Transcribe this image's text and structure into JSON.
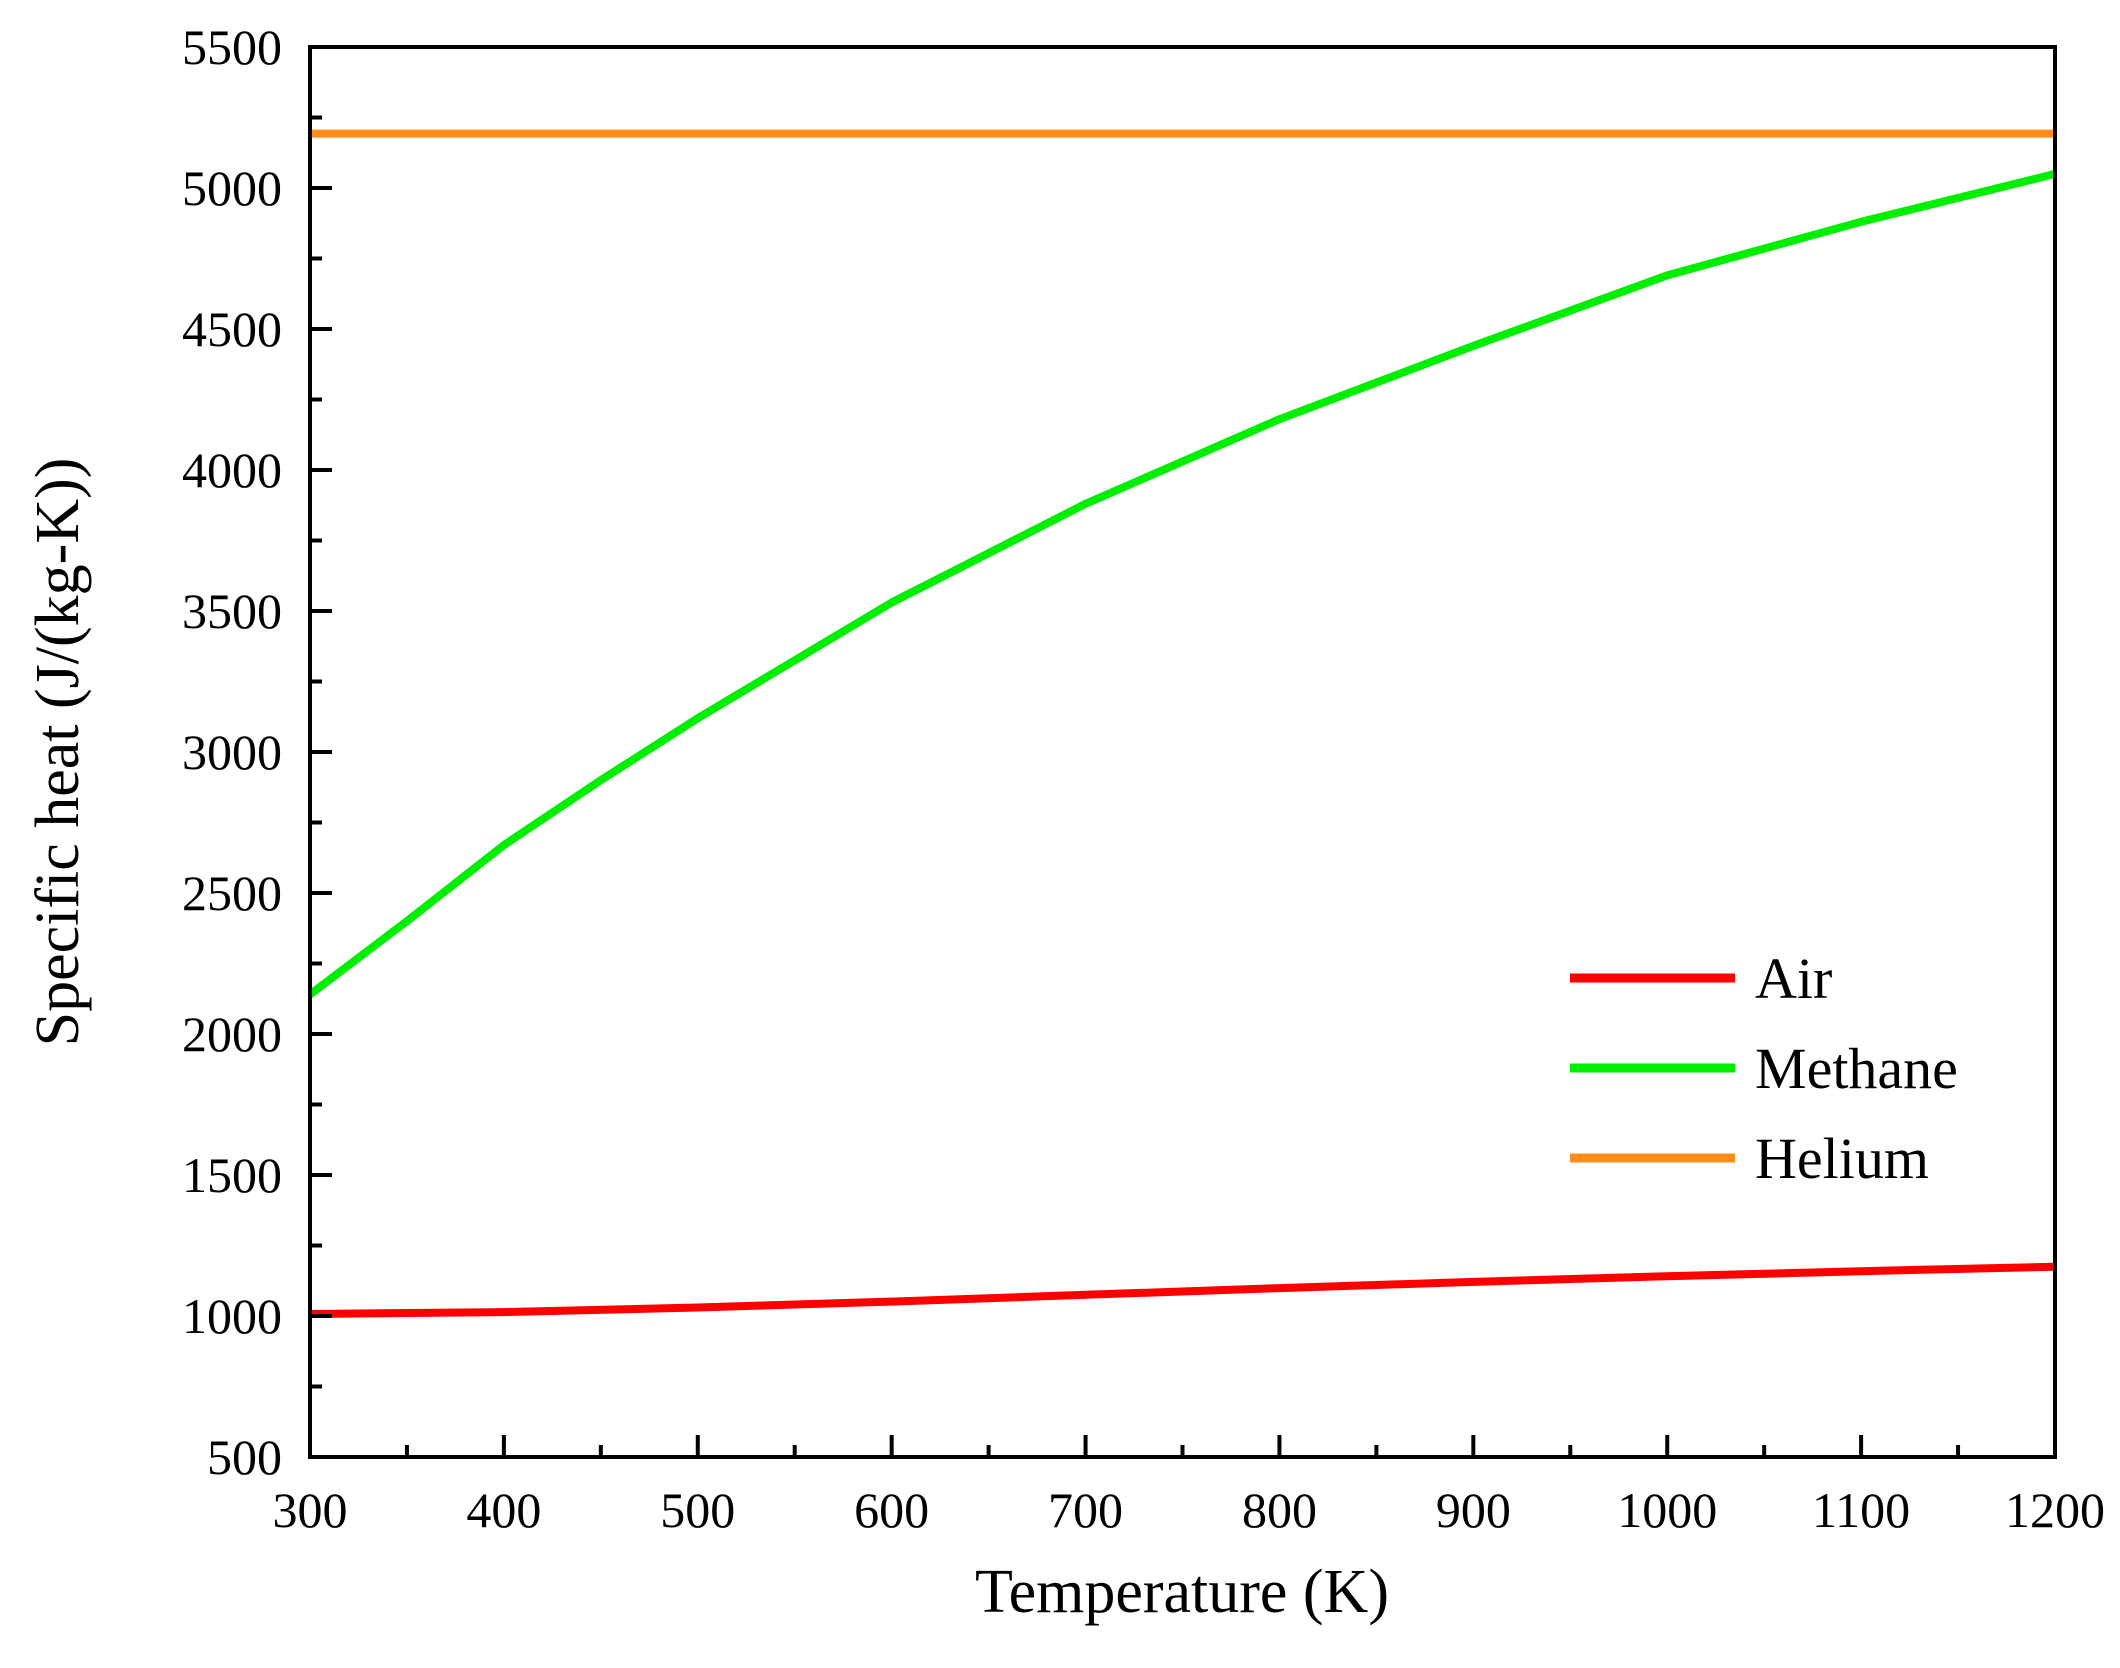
{
  "chart_data": {
    "type": "line",
    "title": "",
    "xlabel": "Temperature (K)",
    "ylabel": "Specific heat (J/(kg-K))",
    "xlim": [
      300,
      1200
    ],
    "ylim": [
      500,
      5500
    ],
    "xticks": [
      300,
      400,
      500,
      600,
      700,
      800,
      900,
      1000,
      1100,
      1200
    ],
    "yticks": [
      500,
      1000,
      1500,
      2000,
      2500,
      3000,
      3500,
      4000,
      4500,
      5000,
      5500
    ],
    "xtick_labels": [
      "300",
      "400",
      "500",
      "600",
      "700",
      "800",
      "900",
      "1000",
      "1100",
      "1200"
    ],
    "ytick_labels": [
      "500",
      "1000",
      "1500",
      "2000",
      "2500",
      "3000",
      "3500",
      "4000",
      "4500",
      "5000",
      "5500"
    ],
    "legend_position": "lower-right",
    "series": [
      {
        "name": "Air",
        "color": "#ff0000",
        "x": [
          300,
          400,
          500,
          600,
          700,
          800,
          900,
          1000,
          1100,
          1200
        ],
        "y": [
          1007,
          1014,
          1030,
          1051,
          1075,
          1099,
          1121,
          1141,
          1159,
          1175
        ]
      },
      {
        "name": "Methane",
        "color": "#00ee00",
        "x": [
          300,
          350,
          400,
          450,
          500,
          600,
          700,
          800,
          900,
          1000,
          1100,
          1200
        ],
        "y": [
          2140,
          2400,
          2670,
          2900,
          3120,
          3530,
          3880,
          4180,
          4440,
          4690,
          4880,
          5050
        ]
      },
      {
        "name": "Helium",
        "color": "#ff8c1a",
        "x": [
          300,
          1200
        ],
        "y": [
          5193,
          5193
        ]
      }
    ]
  }
}
